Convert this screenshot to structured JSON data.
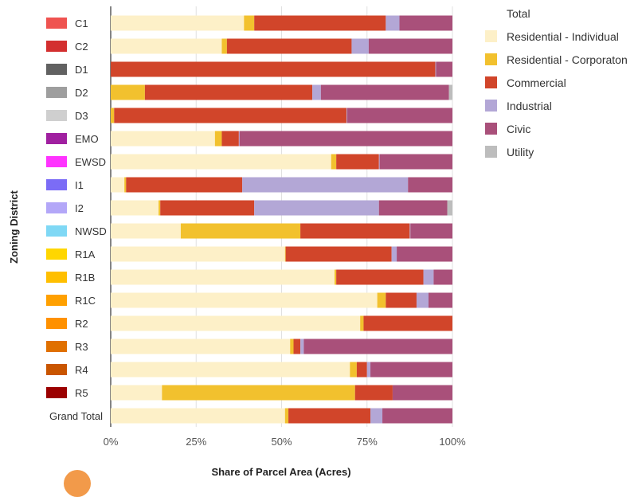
{
  "chart_data": {
    "type": "bar",
    "orientation": "horizontal",
    "stacked": "percent",
    "xlabel": "Share of Parcel Area (Acres)",
    "ylabel": "Zoning District",
    "xlim": [
      0,
      100
    ],
    "x_ticks": [
      "0%",
      "25%",
      "50%",
      "75%",
      "100%"
    ],
    "grid": "vertical",
    "legend_position": "right",
    "legend_title": "Total",
    "categories": [
      "C1",
      "C2",
      "D1",
      "D2",
      "D3",
      "EMO",
      "EWSD",
      "I1",
      "I2",
      "NWSD",
      "R1A",
      "R1B",
      "R1C",
      "R2",
      "R3",
      "R4",
      "R5",
      "Grand Total"
    ],
    "category_colors": [
      "#ef5350",
      "#d32f2f",
      "#616161",
      "#9e9e9e",
      "#cfcfcf",
      "#a020a0",
      "#ff33ff",
      "#7b6cf6",
      "#b3a7f8",
      "#7fd8f5",
      "#ffd600",
      "#ffbf00",
      "#ffa000",
      "#ff9100",
      "#e07000",
      "#c95500",
      "#9b0000",
      "#ffffff"
    ],
    "series": [
      {
        "name": "Residential - Individual",
        "color": "#fdf0c8",
        "values": [
          39,
          32.5,
          0,
          0,
          0,
          30.5,
          64.5,
          4,
          14,
          20.5,
          51,
          65.5,
          78,
          73,
          52.5,
          70,
          15,
          51
        ]
      },
      {
        "name": "Residential - Corporaton",
        "color": "#f2c12e",
        "values": [
          3,
          1.5,
          0,
          10,
          1,
          2,
          1.5,
          0.5,
          0.5,
          35,
          0.2,
          0.5,
          2.5,
          1,
          1,
          2,
          56.5,
          1
        ]
      },
      {
        "name": "Commercial",
        "color": "#d1452a",
        "values": [
          38.5,
          36.5,
          95,
          49,
          68,
          5,
          12.5,
          34,
          27.5,
          32,
          31,
          25.5,
          9,
          26,
          2,
          3,
          11,
          24
        ]
      },
      {
        "name": "Industrial",
        "color": "#b3a7d6",
        "values": [
          4,
          5,
          0.2,
          2.5,
          0.2,
          0.2,
          0.2,
          48.5,
          36.5,
          0.2,
          1.5,
          3,
          3.5,
          0,
          1,
          1,
          0,
          3.5
        ]
      },
      {
        "name": "Civic",
        "color": "#a9507a",
        "values": [
          15.5,
          24.5,
          4.8,
          37.5,
          30.8,
          62.3,
          21.3,
          13,
          20,
          12.3,
          16.3,
          5.5,
          7,
          0,
          43.5,
          24,
          17.5,
          20.5
        ]
      },
      {
        "name": "Utility",
        "color": "#bdbdbd",
        "values": [
          0,
          0,
          0,
          1,
          0,
          0,
          0,
          0,
          1.5,
          0,
          0,
          0,
          0,
          0,
          0,
          0,
          0,
          0
        ]
      }
    ]
  }
}
